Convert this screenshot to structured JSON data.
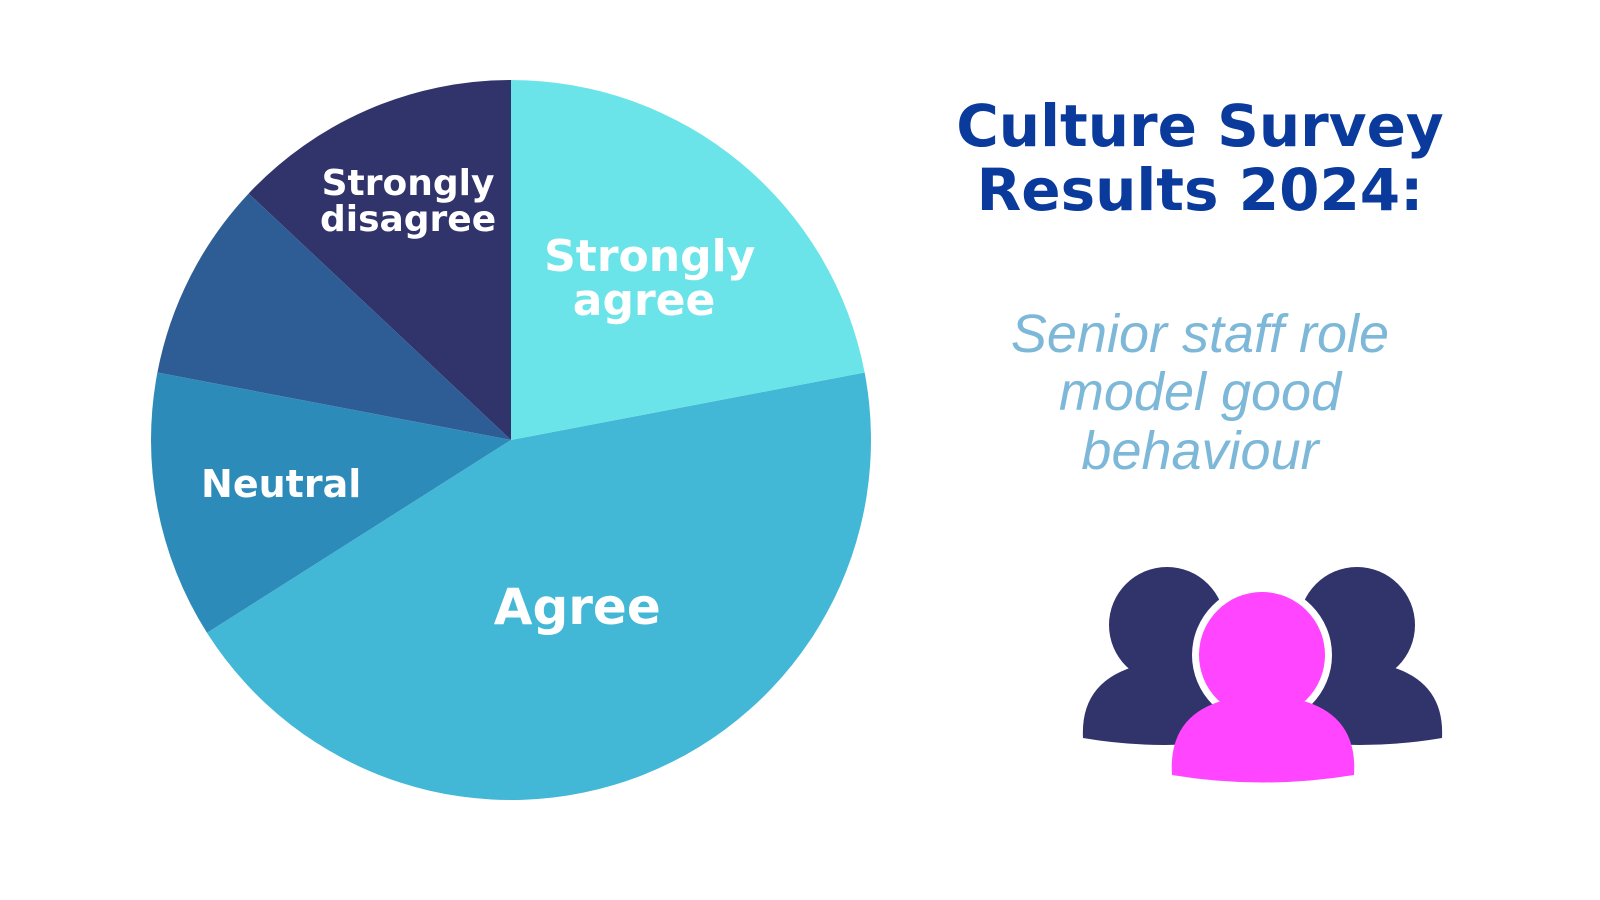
{
  "chart_data": {
    "type": "pie",
    "title": "Culture Survey Results 2024:",
    "subtitle": "Senior staff role model good behaviour",
    "categories": [
      "Strongly agree",
      "Agree",
      "Neutral",
      null,
      "Strongly disagree"
    ],
    "values": [
      22,
      44,
      12,
      9,
      13
    ],
    "colors": [
      "#6be4e9",
      "#42b7d6",
      "#2d8bba",
      "#2e5d95",
      "#31336b"
    ]
  }
}
